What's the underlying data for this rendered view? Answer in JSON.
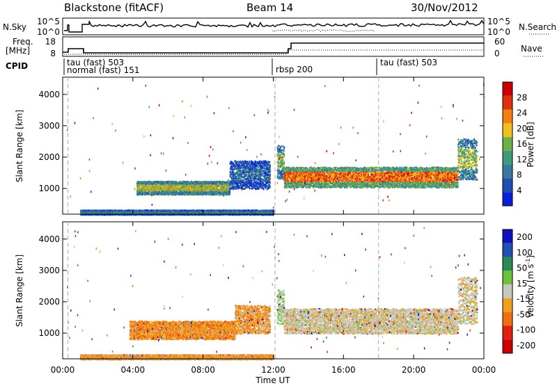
{
  "header": {
    "station": "Blackstone (fitACF)",
    "beam": "Beam 14",
    "date": "30/Nov/2012"
  },
  "strips": {
    "nsky_label": "N.Sky",
    "nsky_ticks": [
      "10^5",
      "10^0"
    ],
    "nsearch_label": "N.Search",
    "nsearch_ticks": [
      "10^5",
      "10^0"
    ],
    "freq_label_1": "Freq.",
    "freq_label_2": "[MHz]",
    "freq_ticks": [
      "18",
      "8"
    ],
    "nave_label": "Nave",
    "nave_ticks": [
      "60",
      "0"
    ],
    "cpid_label": "CPID",
    "cpid_entries": [
      "tau (fast) 503",
      "normal (fast) 151",
      "rbsp 200",
      "tau (fast) 503"
    ]
  },
  "chart_data": [
    {
      "type": "heatmap",
      "name": "power",
      "ylabel": "Slant Range [km]",
      "xlabel": "Time UT",
      "xlim": [
        0,
        24
      ],
      "ylim": [
        180,
        4550
      ],
      "x_ticks": [
        "00:00",
        "04:00",
        "08:00",
        "12:00",
        "16:00",
        "20:00",
        "00:00"
      ],
      "y_ticks": [
        1000,
        2000,
        3000,
        4000
      ],
      "colorbar": {
        "label": "Power [dB]",
        "ticks": [
          4,
          8,
          12,
          16,
          20,
          24,
          28
        ]
      },
      "cpid_change_hours": [
        0.3,
        12.1,
        18.0
      ],
      "bands": [
        {
          "t0": 4.2,
          "t1": 9.5,
          "r_lo": 820,
          "r_hi": 1250,
          "level": 0.55
        },
        {
          "t0": 9.5,
          "t1": 11.8,
          "r_lo": 1000,
          "r_hi": 1900,
          "level": 0.2
        },
        {
          "t0": 12.2,
          "t1": 12.6,
          "r_lo": 1300,
          "r_hi": 2400,
          "level": 0.45
        },
        {
          "t0": 12.6,
          "t1": 22.5,
          "r_lo": 1050,
          "r_hi": 1700,
          "level": 0.8
        },
        {
          "t0": 22.5,
          "t1": 23.6,
          "r_lo": 1300,
          "r_hi": 2600,
          "level": 0.5
        },
        {
          "t0": 1.0,
          "t1": 12.0,
          "r_lo": 180,
          "r_hi": 330,
          "level": 0.3
        }
      ]
    },
    {
      "type": "heatmap",
      "name": "velocity",
      "ylabel": "Slant Range [km]",
      "xlabel": "Time UT",
      "xlim": [
        0,
        24
      ],
      "ylim": [
        180,
        4550
      ],
      "x_ticks": [
        "00:00",
        "04:00",
        "08:00",
        "12:00",
        "16:00",
        "20:00",
        "00:00"
      ],
      "y_ticks": [
        1000,
        2000,
        3000,
        4000
      ],
      "colorbar": {
        "label": "Velocity [m s",
        "label_sup": "-1",
        "label_end": "]",
        "ticks": [
          200,
          100,
          50,
          15,
          -15,
          -50,
          -100,
          -200
        ]
      },
      "cpid_change_hours": [
        0.3,
        12.1,
        18.0
      ],
      "bands": [
        {
          "t0": 3.8,
          "t1": 9.8,
          "r_lo": 820,
          "r_hi": 1400,
          "level": -0.4
        },
        {
          "t0": 9.8,
          "t1": 11.8,
          "r_lo": 1000,
          "r_hi": 1900,
          "level": -0.3
        },
        {
          "t0": 12.2,
          "t1": 12.6,
          "r_lo": 1300,
          "r_hi": 2400,
          "level": 0.2
        },
        {
          "t0": 12.6,
          "t1": 22.5,
          "r_lo": 1000,
          "r_hi": 1800,
          "level": 0.0
        },
        {
          "t0": 22.5,
          "t1": 23.6,
          "r_lo": 1300,
          "r_hi": 2800,
          "level": 0.0
        },
        {
          "t0": 1.0,
          "t1": 12.0,
          "r_lo": 180,
          "r_hi": 330,
          "level": -0.3
        }
      ]
    }
  ]
}
